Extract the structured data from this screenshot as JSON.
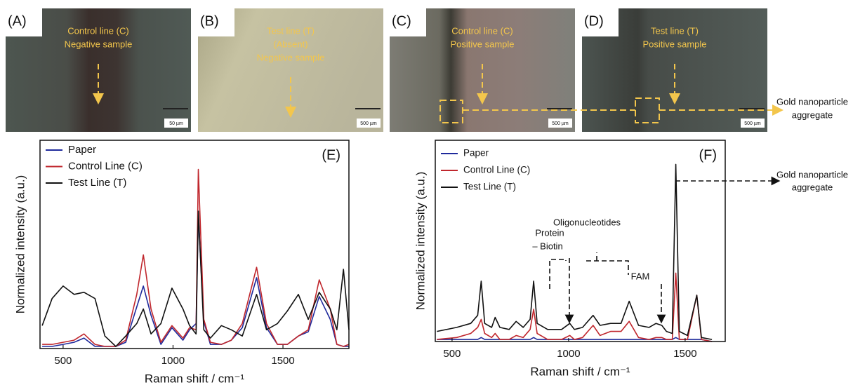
{
  "micrographs": [
    {
      "label": "(A)",
      "caption": [
        "Control line (C)",
        "Negative sample"
      ],
      "scale": "50 µm"
    },
    {
      "label": "(B)",
      "caption": [
        "Test line (T)",
        "(Absent)",
        "Negative sample"
      ],
      "scale": "500 µm"
    },
    {
      "label": "(C)",
      "caption": [
        "Control line (C)",
        "Positive sample"
      ],
      "scale": "500 µm"
    },
    {
      "label": "(D)",
      "caption": [
        "Test line (T)",
        "Positive sample"
      ],
      "scale": "500 µm"
    }
  ],
  "callout": [
    "Gold nanoparticle",
    "aggregate"
  ],
  "chart_data": [
    {
      "type": "line",
      "panel_label": "(E)",
      "xlabel": "Raman shift / cm⁻¹",
      "ylabel": "Normalized intensity (a.u.)",
      "xlim": [
        395,
        1800
      ],
      "ylim": [
        0,
        1
      ],
      "xticks": [
        500,
        1000,
        1500
      ],
      "legend": "upper left",
      "x": [
        405,
        450,
        500,
        550,
        595,
        645,
        690,
        740,
        785,
        835,
        865,
        900,
        945,
        995,
        1045,
        1075,
        1105,
        1115,
        1140,
        1170,
        1220,
        1265,
        1315,
        1380,
        1425,
        1475,
        1520,
        1570,
        1615,
        1665,
        1715,
        1745,
        1775,
        1800
      ],
      "series": [
        {
          "name": "Paper",
          "color": "#1f2a9c",
          "values": [
            0.01,
            0.01,
            0.02,
            0.03,
            0.05,
            0.01,
            0.01,
            0.01,
            0.03,
            0.2,
            0.3,
            0.16,
            0.02,
            0.1,
            0.04,
            0.09,
            0.12,
            0.64,
            0.13,
            0.02,
            0.02,
            0.04,
            0.1,
            0.34,
            0.1,
            0.02,
            0.02,
            0.06,
            0.08,
            0.25,
            0.14,
            0.02,
            0.01,
            0.01
          ]
        },
        {
          "name": "Control Line (C)",
          "color": "#c0272d",
          "values": [
            0.02,
            0.02,
            0.03,
            0.04,
            0.07,
            0.02,
            0.01,
            0.01,
            0.04,
            0.26,
            0.45,
            0.19,
            0.03,
            0.11,
            0.05,
            0.1,
            0.09,
            0.86,
            0.14,
            0.03,
            0.02,
            0.04,
            0.12,
            0.39,
            0.12,
            0.02,
            0.02,
            0.06,
            0.09,
            0.33,
            0.19,
            0.02,
            0.01,
            0.02
          ]
        },
        {
          "name": "Test Line (T)",
          "color": "#111111",
          "values": [
            0.11,
            0.24,
            0.3,
            0.26,
            0.27,
            0.24,
            0.06,
            0.01,
            0.06,
            0.12,
            0.19,
            0.07,
            0.12,
            0.29,
            0.19,
            0.11,
            0.07,
            0.66,
            0.09,
            0.05,
            0.11,
            0.09,
            0.06,
            0.26,
            0.09,
            0.12,
            0.18,
            0.26,
            0.14,
            0.27,
            0.19,
            0.09,
            0.38,
            0.09
          ]
        }
      ]
    },
    {
      "type": "line",
      "panel_label": "(F)",
      "xlabel": "Raman shift / cm⁻¹",
      "ylabel": "Normalized intensity (a.u.)",
      "xlim": [
        428,
        1672
      ],
      "ylim": [
        0,
        1
      ],
      "xticks": [
        500,
        1000,
        1500
      ],
      "legend": "upper left",
      "x": [
        435,
        520,
        580,
        610,
        625,
        640,
        670,
        685,
        705,
        745,
        775,
        805,
        835,
        850,
        865,
        910,
        970,
        1005,
        1025,
        1060,
        1105,
        1135,
        1180,
        1225,
        1260,
        1300,
        1345,
        1375,
        1400,
        1420,
        1445,
        1460,
        1475,
        1510,
        1550,
        1570,
        1615
      ],
      "series": [
        {
          "name": "Paper",
          "color": "#1f2a9c",
          "values": [
            0.01,
            0.01,
            0.01,
            0.01,
            0.02,
            0.01,
            0.01,
            0.01,
            0.01,
            0.01,
            0.01,
            0.01,
            0.01,
            0.02,
            0.01,
            0.01,
            0.01,
            0.01,
            0.01,
            0.01,
            0.01,
            0.01,
            0.01,
            0.01,
            0.01,
            0.01,
            0.01,
            0.01,
            0.01,
            0.01,
            0.01,
            0.02,
            0.01,
            0.01,
            0.01,
            0.01,
            0
          ]
        },
        {
          "name": "Control Line (C)",
          "color": "#c0272d",
          "values": [
            0.01,
            0.02,
            0.04,
            0.07,
            0.11,
            0.04,
            0.02,
            0.04,
            0.01,
            0.01,
            0.03,
            0.02,
            0.06,
            0.16,
            0.04,
            0.01,
            0.01,
            0.03,
            0.01,
            0.02,
            0.08,
            0.03,
            0.05,
            0.05,
            0.1,
            0.02,
            0.01,
            0.02,
            0.02,
            0.01,
            0.01,
            0.34,
            0.01,
            0.01,
            0.23,
            0.01,
            0
          ]
        },
        {
          "name": "Test Line (T)",
          "color": "#111111",
          "values": [
            0.05,
            0.07,
            0.09,
            0.13,
            0.3,
            0.09,
            0.07,
            0.12,
            0.07,
            0.06,
            0.1,
            0.07,
            0.11,
            0.3,
            0.09,
            0.06,
            0.06,
            0.09,
            0.06,
            0.07,
            0.13,
            0.08,
            0.09,
            0.09,
            0.2,
            0.08,
            0.07,
            0.09,
            0.08,
            0.05,
            0.04,
            0.88,
            0.05,
            0.03,
            0.23,
            0.02,
            0.01
          ]
        }
      ],
      "annotations": {
        "oligonucleotides": "Oligonucleotides",
        "protein_biotin": [
          "Protein",
          "– Biotin"
        ],
        "fam": "FAM",
        "gold": [
          "Gold nanoparticle",
          "aggregate"
        ]
      }
    }
  ]
}
